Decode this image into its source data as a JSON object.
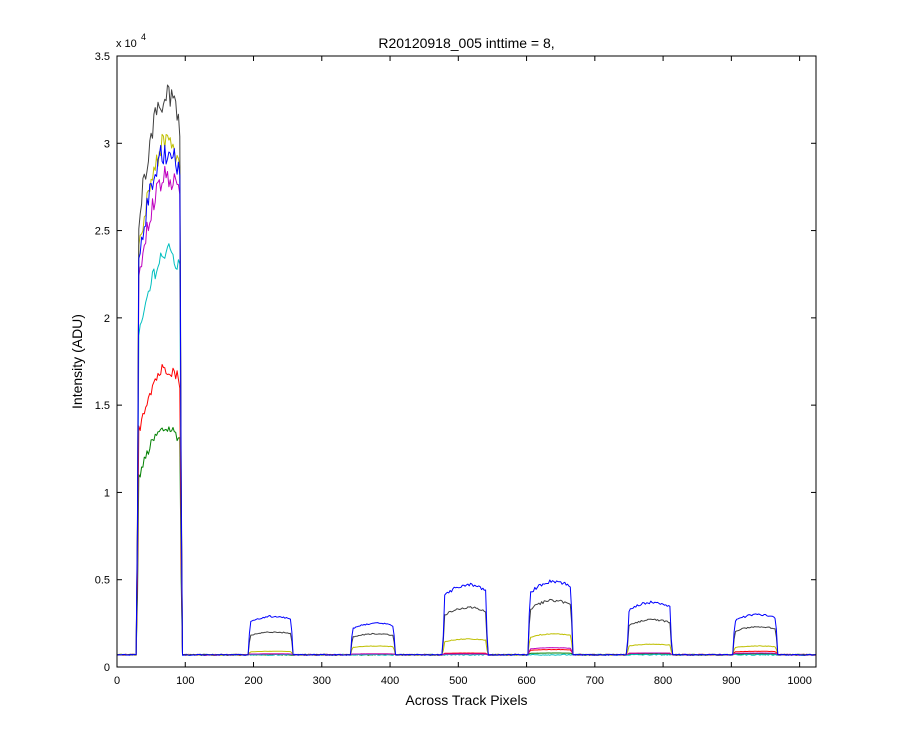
{
  "chart_data": {
    "type": "line",
    "title": "R20120918_005 inttime = 8,",
    "xlabel": "Across Track Pixels",
    "ylabel": "Intensity (ADU)",
    "y_exponent_base": "x 10",
    "y_exponent_power": "4",
    "xlim": [
      0,
      1024
    ],
    "ylim": [
      0,
      35000
    ],
    "xticks": [
      0,
      100,
      200,
      300,
      400,
      500,
      600,
      700,
      800,
      900,
      1000
    ],
    "xtick_labels": [
      "0",
      "100",
      "200",
      "300",
      "400",
      "500",
      "600",
      "700",
      "800",
      "900",
      "1000"
    ],
    "yticks": [
      0,
      5000,
      10000,
      15000,
      20000,
      25000,
      30000,
      35000
    ],
    "ytick_labels": [
      "0",
      "0.5",
      "1",
      "1.5",
      "2",
      "2.5",
      "3",
      "3.5"
    ],
    "grid": false,
    "baseline": 700,
    "plateaus": [
      {
        "x_start": 32,
        "x_end": 92
      },
      {
        "x_start": 195,
        "x_end": 255
      },
      {
        "x_start": 345,
        "x_end": 405
      },
      {
        "x_start": 480,
        "x_end": 540
      },
      {
        "x_start": 605,
        "x_end": 665
      },
      {
        "x_start": 750,
        "x_end": 810
      },
      {
        "x_start": 905,
        "x_end": 965
      }
    ],
    "series": [
      {
        "color": "#0000ff",
        "levels": [
          30500,
          2900,
          2500,
          4700,
          4900,
          3700,
          3000
        ]
      },
      {
        "color": "#404040",
        "levels": [
          33700,
          2000,
          1900,
          3400,
          3800,
          2700,
          2300
        ]
      },
      {
        "color": "#bfbf00",
        "levels": [
          31000,
          900,
          1200,
          1600,
          1900,
          1300,
          1200
        ]
      },
      {
        "color": "#bf00bf",
        "levels": [
          29000,
          750,
          750,
          750,
          1100,
          800,
          800
        ]
      },
      {
        "color": "#00bfbf",
        "levels": [
          24500,
          700,
          700,
          700,
          700,
          700,
          700
        ]
      },
      {
        "color": "#ff0000",
        "levels": [
          17700,
          750,
          750,
          800,
          1000,
          800,
          900
        ]
      },
      {
        "color": "#008000",
        "levels": [
          14100,
          700,
          700,
          750,
          800,
          750,
          750
        ]
      }
    ]
  }
}
